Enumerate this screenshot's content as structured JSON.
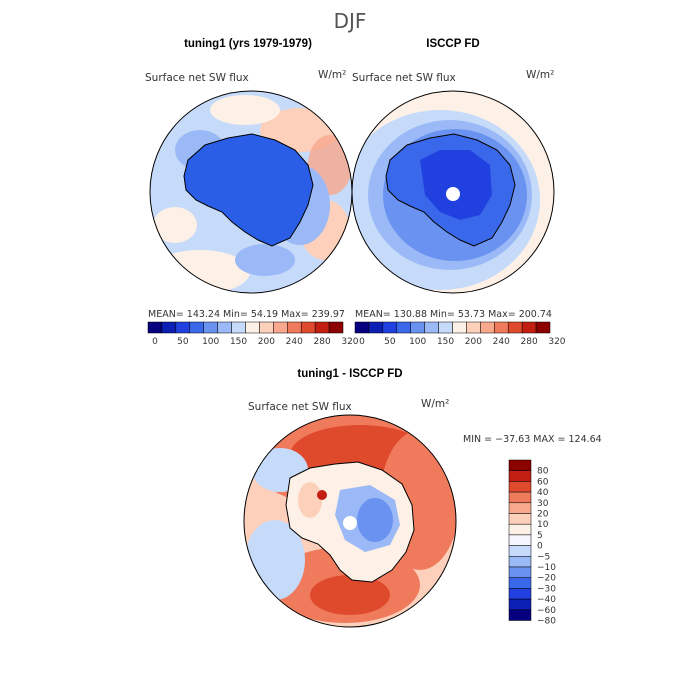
{
  "page": {
    "title": "DJF"
  },
  "colors": {
    "land_dark": "#2a5ee6",
    "panel_b_land": "#3a68ea",
    "scale_0_320": [
      "#06007f",
      "#0c1fb5",
      "#2140e0",
      "#3a68ea",
      "#6a92f0",
      "#9ab9f6",
      "#c6dafa",
      "#fdf0e6",
      "#fdd0bb",
      "#f7a88d",
      "#ef7a5c",
      "#e04a2c",
      "#c21f10",
      "#8c0000"
    ],
    "scale_diff": [
      "#8c0000",
      "#c21f10",
      "#e04a2c",
      "#ef7a5c",
      "#f7a88d",
      "#fdd0bb",
      "#fdf0e6",
      "#f5f7ff",
      "#c6dafa",
      "#9ab9f6",
      "#6a92f0",
      "#3a68ea",
      "#2140e0",
      "#0c1fb5",
      "#06007f"
    ]
  },
  "chart_data": [
    {
      "type": "heatmap",
      "projection": "south-polar-stereographic",
      "title": "tuning1 (yrs 1979-1979)",
      "variable": "Surface net SW flux",
      "units": "W/m²",
      "stats": {
        "label": "MEAN= 143.24   Min=   54.19   Max=  239.97",
        "mean": 143.24,
        "min": 54.19,
        "max": 239.97
      },
      "colorbar": {
        "levels": [
          0,
          25,
          50,
          75,
          100,
          125,
          150,
          175,
          200,
          220,
          240,
          260,
          280,
          300,
          320
        ],
        "tick_labels": [
          "0",
          "50",
          "100",
          "150",
          "200",
          "240",
          "280",
          "320"
        ]
      }
    },
    {
      "type": "heatmap",
      "projection": "south-polar-stereographic",
      "title": "ISCCP FD",
      "variable": "Surface net SW flux",
      "units": "W/m²",
      "stats": {
        "label": "MEAN= 130.88   Min=   53.73   Max=  200.74",
        "mean": 130.88,
        "min": 53.73,
        "max": 200.74
      },
      "colorbar": {
        "levels": [
          0,
          25,
          50,
          75,
          100,
          125,
          150,
          175,
          200,
          220,
          240,
          260,
          280,
          300,
          320
        ],
        "tick_labels": [
          "0",
          "50",
          "100",
          "150",
          "200",
          "240",
          "280",
          "320"
        ]
      }
    },
    {
      "type": "heatmap",
      "projection": "south-polar-stereographic",
      "title": "tuning1 - ISCCP FD",
      "variable": "Surface net SW flux",
      "units": "W/m²",
      "stats": {
        "label": "MIN = −37.63 MAX = 124.64",
        "min": -37.63,
        "max": 124.64
      },
      "colorbar": {
        "levels": [
          80,
          60,
          40,
          30,
          20,
          10,
          5,
          0,
          -5,
          -10,
          -20,
          -30,
          -40,
          -60,
          -80
        ],
        "tick_labels": [
          "80",
          "60",
          "40",
          "30",
          "20",
          "10",
          "5",
          "0",
          "−5",
          "−10",
          "−20",
          "−30",
          "−40",
          "−60",
          "−80"
        ]
      }
    }
  ]
}
